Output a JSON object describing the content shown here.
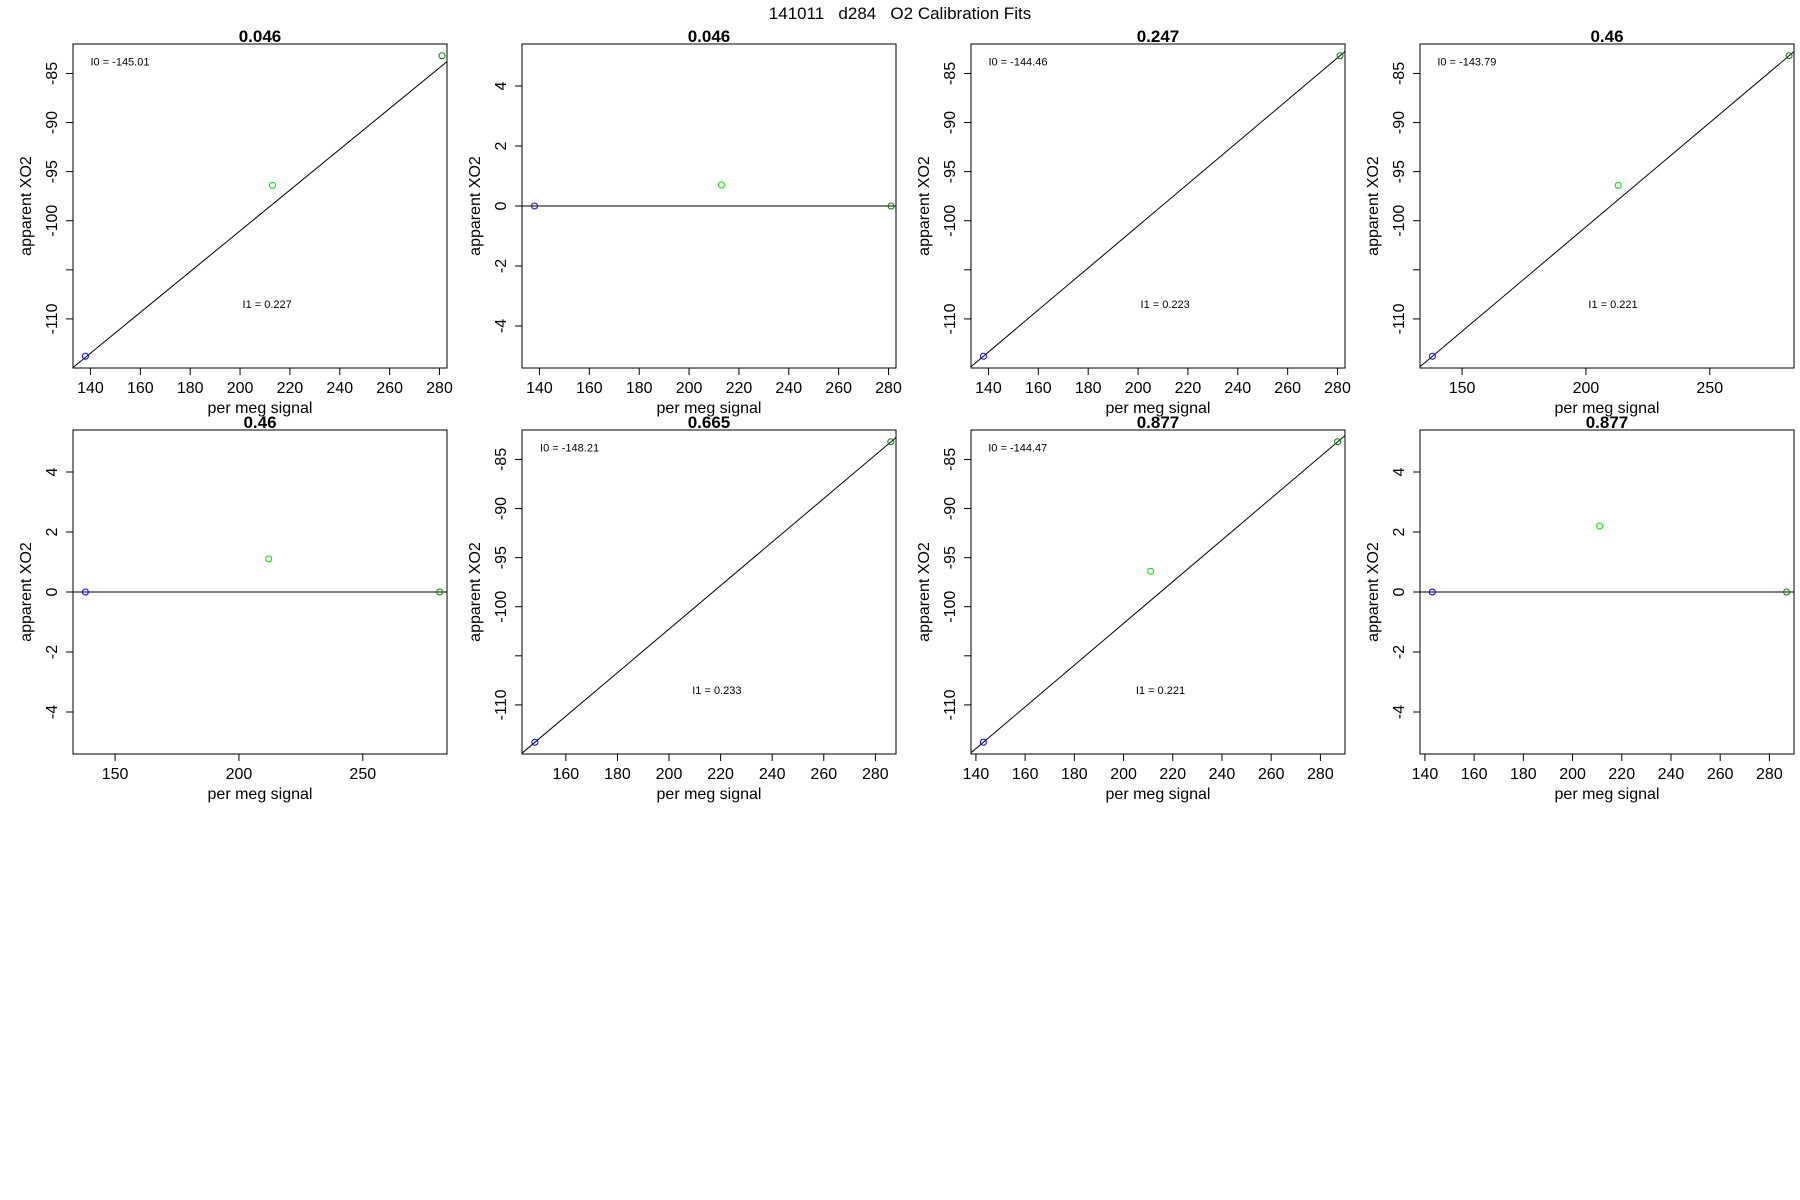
{
  "figure": {
    "title": "141011   d284   O2 Calibration Fits"
  },
  "chart_data": [
    {
      "type": "scatter",
      "title": "0.046",
      "xlabel": "per meg signal",
      "ylabel": "apparent XO2",
      "xlim": [
        133,
        283
      ],
      "ylim": [
        -115,
        -82
      ],
      "x_ticks": [
        140,
        160,
        180,
        200,
        220,
        240,
        260,
        280
      ],
      "y_ticks": [
        -85,
        -90,
        -95,
        -100,
        -105,
        -110
      ],
      "y_tick_labels": [
        "-85",
        "-90",
        "-95",
        "-100",
        "",
        "-110"
      ],
      "points": [
        {
          "x": 138,
          "y": -113.8,
          "color": "#0000ff"
        },
        {
          "x": 213,
          "y": -96.4,
          "color": "#00e000"
        },
        {
          "x": 281,
          "y": -83.2,
          "color": "#008000"
        }
      ],
      "fit_line": {
        "slope": 0.2077,
        "intercept": -142.57
      },
      "annotations": [
        {
          "label": "I0 =",
          "value": "-145.01",
          "x": 140,
          "y": -84.2
        },
        {
          "label": "I1 =",
          "value": "0.227",
          "x": 201,
          "y": -108.9
        }
      ]
    },
    {
      "type": "scatter",
      "title": "0.046",
      "xlabel": "per meg signal",
      "ylabel": "apparent XO2",
      "xlim": [
        133,
        283
      ],
      "ylim": [
        -5.4,
        5.4
      ],
      "x_ticks": [
        140,
        160,
        180,
        200,
        220,
        240,
        260,
        280
      ],
      "y_ticks": [
        4,
        2,
        0,
        -2,
        -4
      ],
      "y_tick_labels": [
        "4",
        "2",
        "0",
        "-2",
        "-4"
      ],
      "points": [
        {
          "x": 138,
          "y": 0,
          "color": "#0000ff"
        },
        {
          "x": 213,
          "y": 0.7,
          "color": "#00e000"
        },
        {
          "x": 281,
          "y": 0,
          "color": "#008000"
        }
      ],
      "fit_line": {
        "slope": 0,
        "intercept": 0
      },
      "annotations": []
    },
    {
      "type": "scatter",
      "title": "0.247",
      "xlabel": "per meg signal",
      "ylabel": "apparent XO2",
      "xlim": [
        133,
        283
      ],
      "ylim": [
        -115,
        -82
      ],
      "x_ticks": [
        140,
        160,
        180,
        200,
        220,
        240,
        260,
        280
      ],
      "y_ticks": [
        -85,
        -90,
        -95,
        -100,
        -105,
        -110
      ],
      "y_tick_labels": [
        "-85",
        "-90",
        "-95",
        "-100",
        "",
        "-110"
      ],
      "points": [
        {
          "x": 138,
          "y": -113.8,
          "color": "#0000ff"
        },
        {
          "x": 281,
          "y": -83.2,
          "color": "#008000"
        }
      ],
      "fit_line": {
        "slope": 0.214,
        "intercept": -143.33
      },
      "annotations": [
        {
          "label": "I0 =",
          "value": "-144.46",
          "x": 140,
          "y": -84.2
        },
        {
          "label": "I1 =",
          "value": "0.223",
          "x": 201,
          "y": -108.9
        }
      ]
    },
    {
      "type": "scatter",
      "title": "0.46",
      "xlabel": "per meg signal",
      "ylabel": "apparent XO2",
      "xlim": [
        133,
        284
      ],
      "ylim": [
        -115,
        -82
      ],
      "x_ticks": [
        150,
        200,
        250
      ],
      "y_ticks": [
        -85,
        -90,
        -95,
        -100,
        -105,
        -110
      ],
      "y_tick_labels": [
        "-85",
        "-90",
        "-95",
        "-100",
        "",
        "-110"
      ],
      "points": [
        {
          "x": 138,
          "y": -113.8,
          "color": "#0000ff"
        },
        {
          "x": 213,
          "y": -96.4,
          "color": "#00e000"
        },
        {
          "x": 282,
          "y": -83.2,
          "color": "#008000"
        }
      ],
      "fit_line": {
        "slope": 0.2125,
        "intercept": -143.13
      },
      "annotations": [
        {
          "label": "I0 =",
          "value": "-143.79",
          "x": 140,
          "y": -84.2
        },
        {
          "label": "I1 =",
          "value": "0.221",
          "x": 201,
          "y": -108.9
        }
      ]
    },
    {
      "type": "scatter",
      "title": "0.46",
      "xlabel": "per meg signal",
      "ylabel": "apparent XO2",
      "xlim": [
        133,
        284
      ],
      "ylim": [
        -5.4,
        5.4
      ],
      "x_ticks": [
        150,
        200,
        250
      ],
      "y_ticks": [
        4,
        2,
        0,
        -2,
        -4
      ],
      "y_tick_labels": [
        "4",
        "2",
        "0",
        "-2",
        "-4"
      ],
      "points": [
        {
          "x": 138,
          "y": 0,
          "color": "#0000ff"
        },
        {
          "x": 212,
          "y": 1.1,
          "color": "#00e000"
        },
        {
          "x": 281,
          "y": 0,
          "color": "#008000"
        }
      ],
      "fit_line": {
        "slope": 0,
        "intercept": 0
      },
      "annotations": []
    },
    {
      "type": "scatter",
      "title": "0.665",
      "xlabel": "per meg signal",
      "ylabel": "apparent XO2",
      "xlim": [
        143,
        288
      ],
      "ylim": [
        -115,
        -82
      ],
      "x_ticks": [
        160,
        180,
        200,
        220,
        240,
        260,
        280
      ],
      "y_ticks": [
        -85,
        -90,
        -95,
        -100,
        -105,
        -110
      ],
      "y_tick_labels": [
        "-85",
        "-90",
        "-95",
        "-100",
        "",
        "-110"
      ],
      "points": [
        {
          "x": 148,
          "y": -113.8,
          "color": "#0000ff"
        },
        {
          "x": 286,
          "y": -83.2,
          "color": "#008000"
        }
      ],
      "fit_line": {
        "slope": 0.2217,
        "intercept": -146.62
      },
      "annotations": [
        {
          "label": "I0 =",
          "value": "-148.21",
          "x": 150,
          "y": -84.2
        },
        {
          "label": "I1 =",
          "value": "0.233",
          "x": 209,
          "y": -108.9
        }
      ]
    },
    {
      "type": "scatter",
      "title": "0.877",
      "xlabel": "per meg signal",
      "ylabel": "apparent XO2",
      "xlim": [
        138,
        290
      ],
      "ylim": [
        -115,
        -82
      ],
      "x_ticks": [
        140,
        160,
        180,
        200,
        220,
        240,
        260,
        280
      ],
      "y_ticks": [
        -85,
        -90,
        -95,
        -100,
        -105,
        -110
      ],
      "y_tick_labels": [
        "-85",
        "-90",
        "-95",
        "-100",
        "",
        "-110"
      ],
      "points": [
        {
          "x": 143,
          "y": -113.8,
          "color": "#0000ff"
        },
        {
          "x": 211,
          "y": -96.4,
          "color": "#00e000"
        },
        {
          "x": 287,
          "y": -83.2,
          "color": "#008000"
        }
      ],
      "fit_line": {
        "slope": 0.2125,
        "intercept": -144.2
      },
      "annotations": [
        {
          "label": "I0 =",
          "value": "-144.47",
          "x": 145,
          "y": -84.2
        },
        {
          "label": "I1 =",
          "value": "0.221",
          "x": 205,
          "y": -108.9
        }
      ]
    },
    {
      "type": "scatter",
      "title": "0.877",
      "xlabel": "per meg signal",
      "ylabel": "apparent XO2",
      "xlim": [
        138,
        290
      ],
      "ylim": [
        -5.4,
        5.4
      ],
      "x_ticks": [
        140,
        160,
        180,
        200,
        220,
        240,
        260,
        280
      ],
      "y_ticks": [
        4,
        2,
        0,
        -2,
        -4
      ],
      "y_tick_labels": [
        "4",
        "2",
        "0",
        "-2",
        "-4"
      ],
      "points": [
        {
          "x": 143,
          "y": 0,
          "color": "#0000ff"
        },
        {
          "x": 211,
          "y": 2.2,
          "color": "#00e000"
        },
        {
          "x": 287,
          "y": 0,
          "color": "#008000"
        }
      ],
      "fit_line": {
        "slope": 0,
        "intercept": 0
      },
      "annotations": []
    }
  ]
}
